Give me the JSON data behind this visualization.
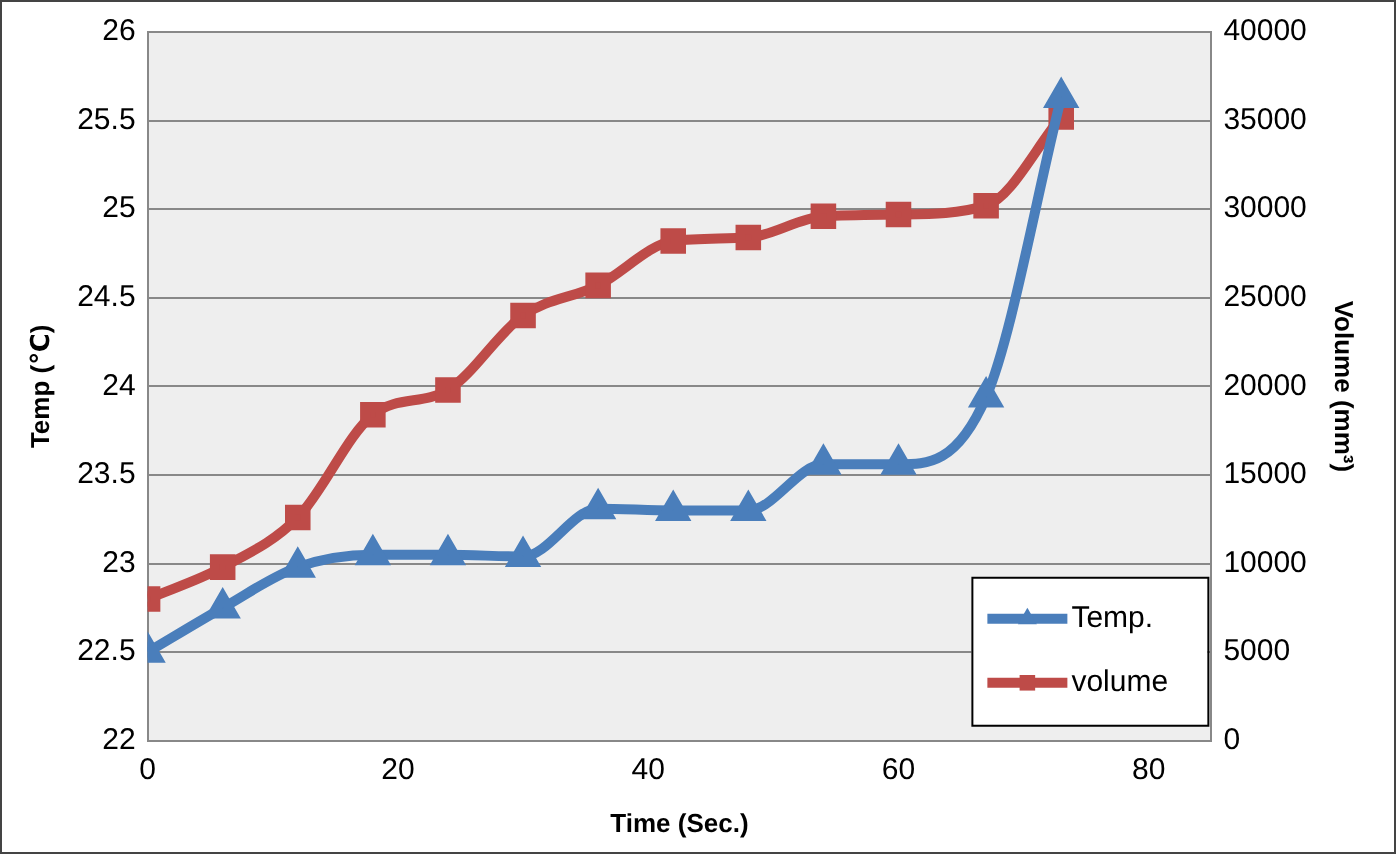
{
  "chart_data": {
    "type": "line",
    "xlabel": "Time (Sec.)",
    "ylabel": "Temp (℃)",
    "y2label": "Volume (mm³)",
    "x": [
      0,
      6,
      12,
      18,
      24,
      30,
      36,
      42,
      48,
      54,
      60,
      67,
      73
    ],
    "series": [
      {
        "name": "Temp.",
        "color": "#4a7ebb",
        "marker": "triangle",
        "values": [
          22.5,
          22.75,
          22.98,
          23.05,
          23.05,
          23.04,
          23.31,
          23.3,
          23.3,
          23.56,
          23.56,
          23.94,
          25.63
        ]
      },
      {
        "name": "volume",
        "color": "#be4b48",
        "marker": "square",
        "axis": "y2",
        "values": [
          8000,
          9800,
          12600,
          18400,
          19800,
          24000,
          25700,
          28200,
          28400,
          29600,
          29700,
          30200,
          35200
        ]
      }
    ],
    "xlim": [
      0,
      85
    ],
    "xticks": [
      0,
      20,
      40,
      60,
      80
    ],
    "ylim": [
      22,
      26
    ],
    "yticks": [
      22,
      22.5,
      23,
      23.5,
      24,
      24.5,
      25,
      25.5,
      26
    ],
    "y2lim": [
      0,
      40000
    ],
    "y2ticks": [
      0,
      5000,
      10000,
      15000,
      20000,
      25000,
      30000,
      35000,
      40000
    ],
    "grid": "y",
    "legend": "bottom right",
    "line_style": "solid"
  }
}
